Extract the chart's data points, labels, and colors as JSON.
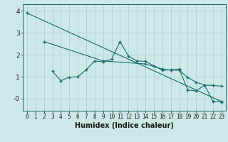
{
  "xlabel": "Humidex (Indice chaleur)",
  "bg_color": "#cce9e7",
  "grid_color": "#aad4d0",
  "line_color": "#1a6b6b",
  "xlim": [
    -0.5,
    23.5
  ],
  "ylim": [
    -0.55,
    4.3
  ],
  "yticks": [
    0,
    1,
    2,
    3,
    4
  ],
  "ytick_labels": [
    "-0",
    "1",
    "2",
    "3",
    "4"
  ],
  "xticks": [
    0,
    1,
    2,
    3,
    4,
    5,
    6,
    7,
    8,
    9,
    10,
    11,
    12,
    13,
    14,
    15,
    16,
    17,
    18,
    19,
    20,
    21,
    22,
    23
  ],
  "line1_x": [
    0,
    23
  ],
  "line1_y": [
    3.9,
    -0.13
  ],
  "line2_x": [
    2,
    9,
    14,
    16,
    17,
    18,
    19,
    20,
    21,
    22,
    23
  ],
  "line2_y": [
    2.6,
    1.72,
    1.58,
    1.35,
    1.3,
    1.3,
    0.97,
    0.75,
    0.62,
    0.6,
    0.57
  ],
  "line3_x": [
    3,
    4,
    5,
    6,
    7,
    8,
    9,
    10,
    11,
    12,
    13,
    14,
    15,
    16,
    17,
    18,
    19,
    20,
    21,
    22,
    23
  ],
  "line3_y": [
    1.25,
    0.82,
    0.98,
    1.0,
    1.32,
    1.72,
    1.68,
    1.8,
    2.6,
    1.93,
    1.72,
    1.7,
    1.5,
    1.3,
    1.31,
    1.35,
    0.4,
    0.35,
    0.62,
    -0.12,
    -0.15
  ]
}
